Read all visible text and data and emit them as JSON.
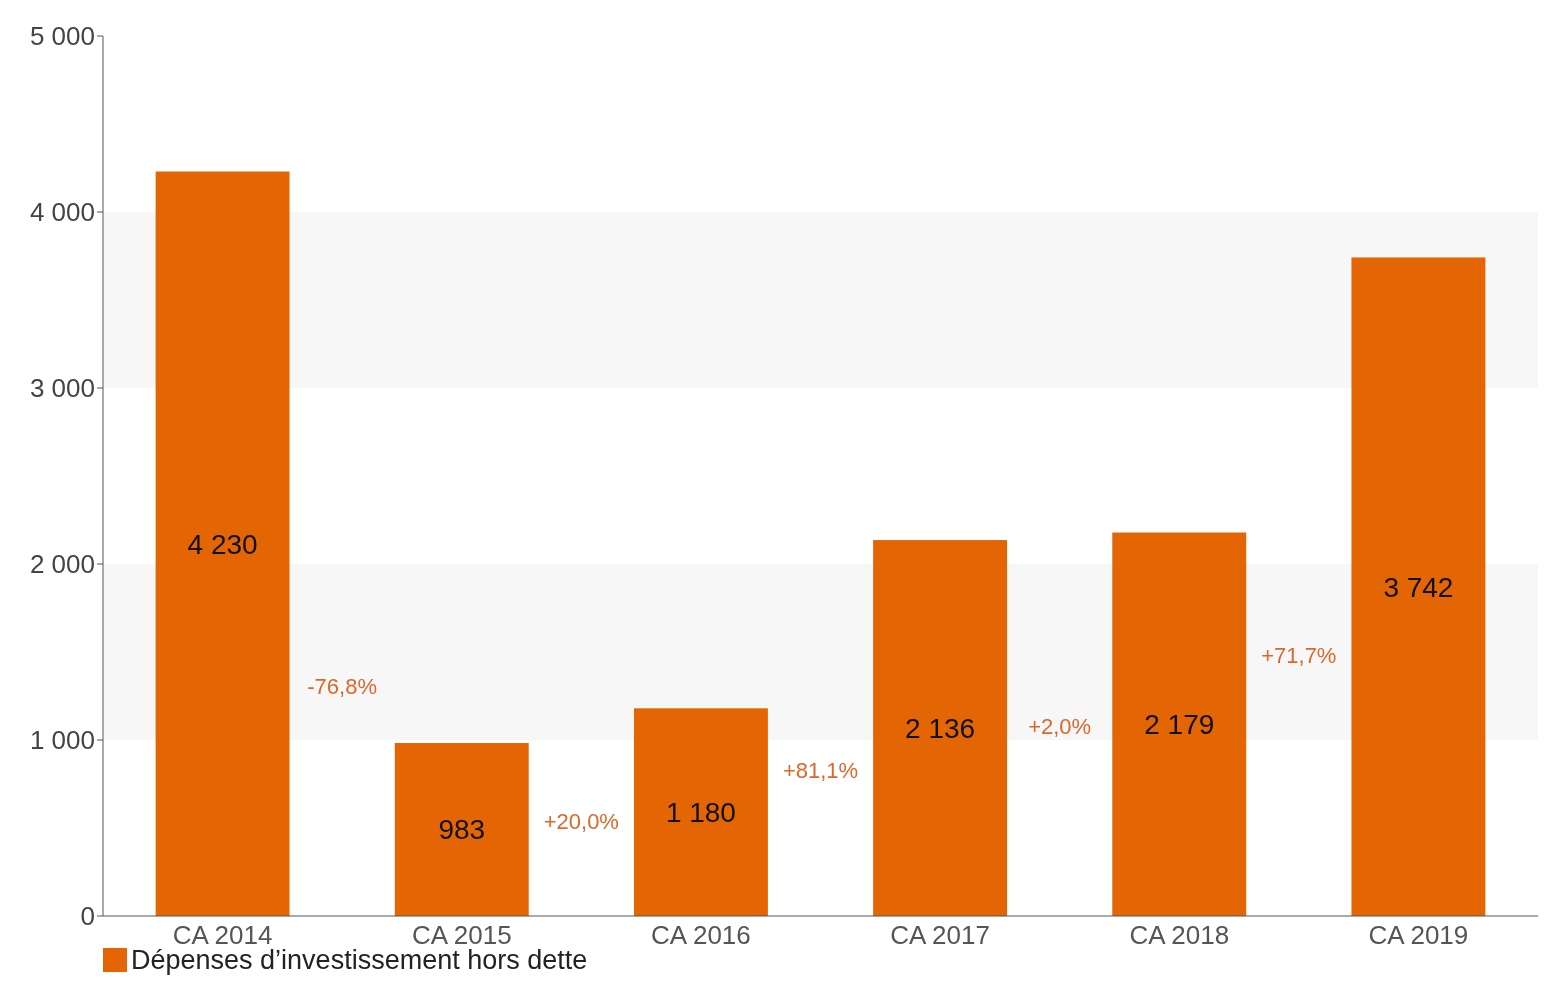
{
  "chart_data": {
    "type": "bar",
    "categories": [
      "CA 2014",
      "CA 2015",
      "CA 2016",
      "CA 2017",
      "CA 2018",
      "CA 2019"
    ],
    "series": [
      {
        "name": "Dépenses d’investissement hors dette",
        "color": "#e46504",
        "values": [
          4230,
          983,
          1180,
          2136,
          2179,
          3742
        ]
      }
    ],
    "value_labels": [
      "4 230",
      "983",
      "1 180",
      "2 136",
      "2 179",
      "3 742"
    ],
    "annotations": [
      "-76,8%",
      "+20,0%",
      "+81,1%",
      "+2,0%",
      "+71,7%"
    ],
    "ylim": [
      0,
      5000
    ],
    "yticks": [
      {
        "value": 0,
        "label": "0"
      },
      {
        "value": 1000,
        "label": "1 000"
      },
      {
        "value": 2000,
        "label": "2 000"
      },
      {
        "value": 3000,
        "label": "3 000"
      },
      {
        "value": 4000,
        "label": "4 000"
      },
      {
        "value": 5000,
        "label": "5 000"
      }
    ],
    "bands": [
      {
        "axis": "y",
        "from": 1000,
        "to": 2000,
        "color": "#f7f7f7"
      },
      {
        "axis": "y",
        "from": 3000,
        "to": 4000,
        "color": "#f7f7f7"
      }
    ],
    "legend": "bottom left"
  }
}
